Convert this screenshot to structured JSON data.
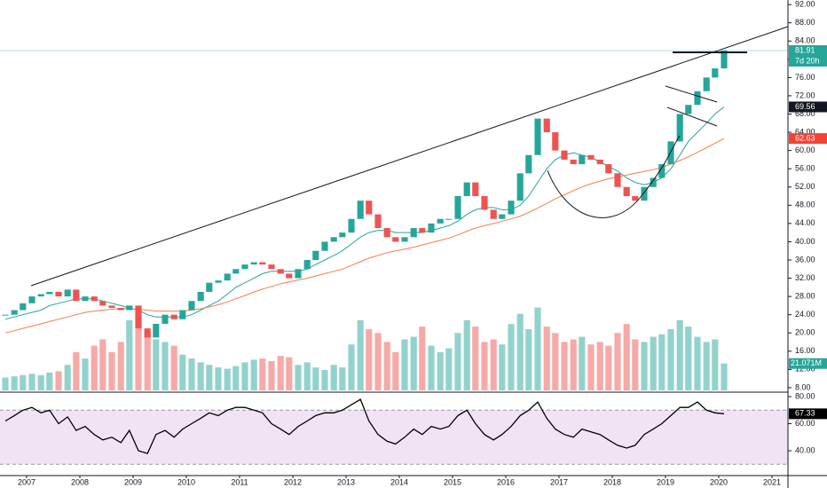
{
  "chart_data": {
    "type": "candlestick",
    "x": [
      2006.6,
      2006.77,
      2006.93,
      2007.1,
      2007.27,
      2007.43,
      2007.6,
      2007.77,
      2007.93,
      2008.1,
      2008.27,
      2008.43,
      2008.6,
      2008.77,
      2008.93,
      2009.1,
      2009.27,
      2009.43,
      2009.6,
      2009.77,
      2009.93,
      2010.1,
      2010.27,
      2010.43,
      2010.6,
      2010.77,
      2010.93,
      2011.1,
      2011.27,
      2011.43,
      2011.6,
      2011.77,
      2011.93,
      2012.1,
      2012.27,
      2012.43,
      2012.6,
      2012.77,
      2012.93,
      2013.1,
      2013.27,
      2013.43,
      2013.6,
      2013.77,
      2013.93,
      2014.1,
      2014.27,
      2014.43,
      2014.6,
      2014.77,
      2014.93,
      2015.1,
      2015.27,
      2015.43,
      2015.6,
      2015.77,
      2015.93,
      2016.1,
      2016.27,
      2016.43,
      2016.6,
      2016.77,
      2016.93,
      2017.1,
      2017.27,
      2017.43,
      2017.6,
      2017.77,
      2017.93,
      2018.1,
      2018.27,
      2018.43,
      2018.6,
      2018.77,
      2018.93,
      2019.1,
      2019.27,
      2019.43,
      2019.6,
      2019.77,
      2019.93,
      2020.1
    ],
    "xlim": [
      2006.5,
      2021.3
    ],
    "xticks": [
      2007,
      2008,
      2009,
      2010,
      2011,
      2012,
      2013,
      2014,
      2015,
      2016,
      2017,
      2018,
      2019,
      2020,
      2021
    ],
    "ylim": [
      7.4,
      93
    ],
    "yticks": [
      {
        "value": 8,
        "label": "8.00"
      },
      {
        "value": 12,
        "label": "12.00"
      },
      {
        "value": 16,
        "label": "16.00"
      },
      {
        "value": 20,
        "label": "20.00"
      },
      {
        "value": 24,
        "label": "24.00"
      },
      {
        "value": 28,
        "label": "28.00"
      },
      {
        "value": 32,
        "label": "32.00"
      },
      {
        "value": 36,
        "label": "36.00"
      },
      {
        "value": 40,
        "label": "40.00"
      },
      {
        "value": 44,
        "label": "44.00"
      },
      {
        "value": 48,
        "label": "48.00"
      },
      {
        "value": 52,
        "label": "52.00"
      },
      {
        "value": 56,
        "label": "56.00"
      },
      {
        "value": 60,
        "label": "60.00"
      },
      {
        "value": 64,
        "label": "64.00"
      },
      {
        "value": 68,
        "label": "68.00"
      },
      {
        "value": 72,
        "label": "72.00"
      },
      {
        "value": 76,
        "label": "76.00"
      },
      {
        "value": 80,
        "label": "80.00"
      },
      {
        "value": 84,
        "label": "84.00"
      },
      {
        "value": 88,
        "label": "88.00"
      },
      {
        "value": 92,
        "label": "92.00"
      }
    ],
    "close": {
      "color_up": "#26a69a",
      "color_down": "#ef5350",
      "values": [
        24,
        25,
        26.5,
        28,
        28.5,
        29,
        28,
        29.5,
        27,
        28,
        27,
        26,
        25.5,
        25,
        26,
        21,
        19,
        22,
        24,
        23,
        25,
        27,
        29,
        31,
        31.5,
        33,
        34,
        35,
        35.5,
        35,
        34,
        33,
        32,
        34,
        36,
        38,
        40,
        41,
        42,
        45,
        49,
        46,
        43,
        41,
        40,
        41,
        43,
        42,
        44,
        45,
        45,
        50,
        53,
        50,
        47,
        45,
        46,
        49,
        55,
        59,
        67,
        64,
        60,
        58,
        57,
        59,
        58,
        57,
        55,
        52,
        50,
        49,
        52,
        54,
        57,
        62,
        68,
        70,
        73,
        76,
        78,
        81.91
      ],
      "tag_color": "#26a69a"
    },
    "countdown": "7d 20h",
    "lines": [
      {
        "color": "#26a69a",
        "tag_color": "#131722",
        "values": [
          23,
          23.5,
          24,
          24.5,
          25,
          26,
          26.5,
          27,
          27.5,
          27.5,
          27.5,
          27,
          26.5,
          26,
          25.5,
          25,
          24,
          23.5,
          23.5,
          23.5,
          23.5,
          24,
          25,
          26,
          27,
          28.5,
          30,
          31,
          32,
          33,
          33.5,
          33.5,
          33.5,
          33.5,
          34,
          35,
          36,
          37,
          38,
          39.5,
          41,
          42,
          42.5,
          42.5,
          42,
          42,
          42,
          42,
          42.5,
          43,
          43.5,
          44.5,
          46,
          47,
          47.5,
          47.5,
          47,
          47,
          48,
          50,
          53,
          56,
          58,
          59,
          59.5,
          59,
          58.5,
          57.5,
          56.5,
          55.5,
          54,
          53,
          52.5,
          53,
          54,
          56,
          59,
          62,
          64,
          66,
          68,
          69.56
        ]
      },
      {
        "color": "#f57c4f",
        "tag_color": "#f44336",
        "values": [
          20,
          20.5,
          21,
          21.5,
          22,
          22.5,
          23,
          23.5,
          24,
          24.5,
          24.8,
          25,
          25.2,
          25.3,
          25.3,
          25.2,
          25,
          24.8,
          24.8,
          24.8,
          24.8,
          25,
          25.3,
          25.7,
          26.2,
          26.8,
          27.5,
          28.2,
          29,
          29.6,
          30.2,
          30.8,
          31.2,
          31.6,
          32,
          32.5,
          33,
          33.5,
          34,
          34.8,
          35.6,
          36.4,
          37,
          37.6,
          38,
          38.4,
          38.8,
          39.3,
          39.8,
          40.3,
          40.8,
          41.5,
          42.3,
          43,
          43.5,
          44,
          44.5,
          45,
          45.6,
          46.4,
          47.4,
          48.4,
          49.4,
          50.3,
          51.2,
          52,
          52.7,
          53.3,
          53.8,
          54.2,
          54.6,
          55,
          55.4,
          55.8,
          56.3,
          57,
          57.8,
          58.6,
          59.6,
          60.6,
          61.6,
          62.63
        ]
      }
    ],
    "volume": {
      "ylim": [
        0,
        306
      ],
      "tag_color": "#26a69a",
      "last_label": "21.071M",
      "values": [
        10,
        11,
        12,
        13,
        12,
        14,
        15,
        20,
        30,
        25,
        35,
        40,
        30,
        38,
        55,
        60,
        45,
        40,
        38,
        35,
        28,
        25,
        22,
        20,
        18,
        17,
        19,
        22,
        24,
        25,
        23,
        27,
        26,
        20,
        22,
        18,
        16,
        20,
        18,
        36,
        55,
        48,
        45,
        38,
        30,
        40,
        42,
        50,
        35,
        30,
        33,
        45,
        55,
        50,
        38,
        40,
        36,
        52,
        60,
        48,
        65,
        50,
        45,
        38,
        40,
        42,
        36,
        38,
        35,
        45,
        52,
        40,
        38,
        42,
        44,
        48,
        55,
        50,
        42,
        38,
        40,
        21.071
      ]
    },
    "rsi": {
      "color": "#000000",
      "band_color": "#e1bee7",
      "tag_color": "#000000",
      "ylim": [
        22.3,
        83.3
      ],
      "band": [
        30,
        70
      ],
      "yticks": [
        {
          "value": 80,
          "label": "80.00"
        },
        {
          "value": 60,
          "label": "60.00"
        },
        {
          "value": 40,
          "label": "40.00"
        }
      ],
      "values": [
        62,
        66,
        70,
        72,
        68,
        70,
        60,
        65,
        55,
        58,
        52,
        48,
        50,
        46,
        55,
        40,
        38,
        52,
        55,
        50,
        56,
        60,
        64,
        68,
        66,
        70,
        72,
        72,
        70,
        68,
        60,
        56,
        52,
        58,
        62,
        66,
        68,
        68,
        70,
        74,
        78,
        62,
        52,
        47,
        45,
        50,
        56,
        52,
        58,
        56,
        58,
        66,
        70,
        60,
        52,
        48,
        52,
        58,
        66,
        70,
        76,
        64,
        56,
        52,
        50,
        56,
        54,
        52,
        48,
        44,
        42,
        44,
        52,
        56,
        60,
        66,
        72,
        72,
        76,
        70,
        68,
        67.33
      ]
    }
  }
}
